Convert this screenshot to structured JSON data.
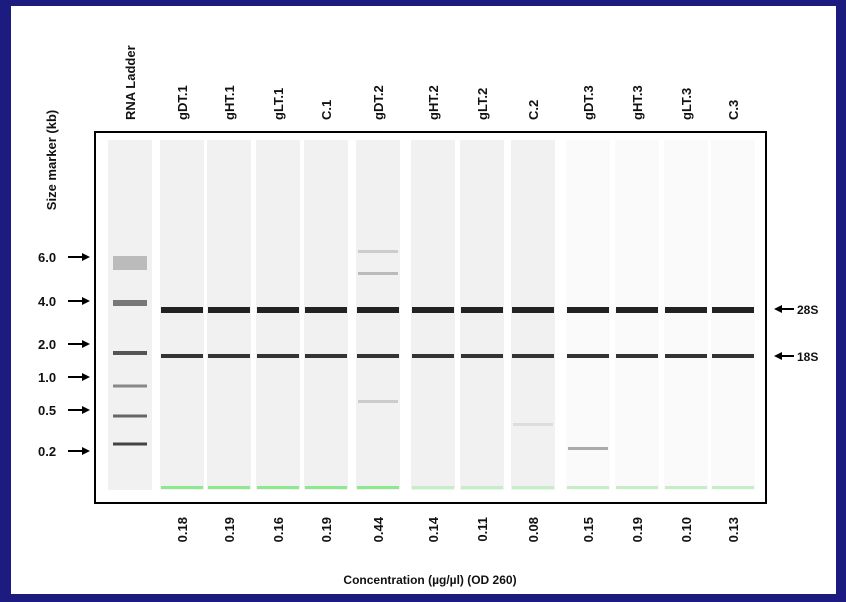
{
  "lanes": [
    "RNA Ladder",
    "gDT.1",
    "gHT.1",
    "gLT.1",
    "C.1",
    "gDT.2",
    "gHT.2",
    "gLT.2",
    "C.2",
    "gDT.3",
    "gHT.3",
    "gLT.3",
    "C.3"
  ],
  "concentrations": [
    "0.18",
    "0.19",
    "0.16",
    "0.19",
    "0.44",
    "0.14",
    "0.11",
    "0.08",
    "0.15",
    "0.19",
    "0.10",
    "0.13"
  ],
  "y_title": "Size marker (kb)",
  "size_markers": [
    "6.0",
    "4.0",
    "2.0",
    "1.0",
    "0.5",
    "0.2"
  ],
  "band_labels": [
    "28S",
    "18S"
  ],
  "x_title": "Concentration (µg/µl) (OD 260)"
}
